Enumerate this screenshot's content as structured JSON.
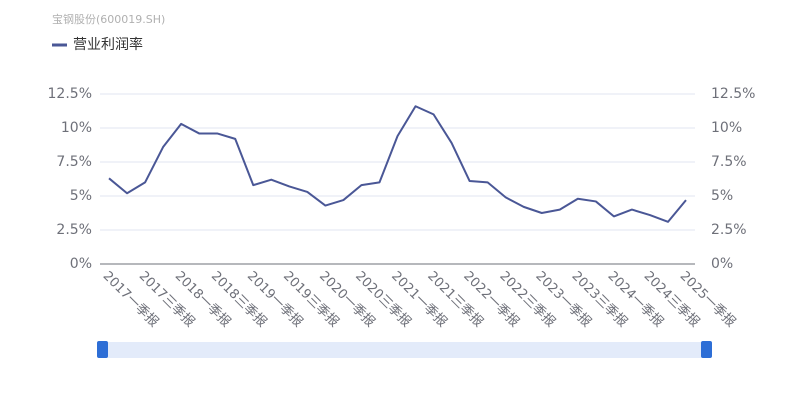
{
  "chart_data": {
    "type": "line",
    "title": "宝钢股份(600019.SH)",
    "categories": [
      "2017一季报",
      null,
      "2017三季报",
      null,
      "2018一季报",
      null,
      "2018三季报",
      null,
      "2019一季报",
      null,
      "2019三季报",
      null,
      "2020一季报",
      null,
      "2020三季报",
      null,
      "2021一季报",
      null,
      "2021三季报",
      null,
      "2022一季报",
      null,
      "2022三季报",
      null,
      "2023一季报",
      null,
      "2023三季报",
      null,
      "2024一季报",
      null,
      "2024三季报",
      null,
      "2025一季报"
    ],
    "series": [
      {
        "name": "营业利润率",
        "color": "#4a5796",
        "values": [
          6.3,
          5.2,
          6.0,
          8.6,
          10.3,
          9.6,
          9.6,
          9.2,
          5.8,
          6.2,
          5.7,
          5.3,
          4.3,
          4.7,
          5.8,
          6.0,
          9.4,
          11.6,
          11.0,
          8.9,
          6.1,
          6.0,
          4.9,
          4.2,
          3.75,
          4.0,
          4.8,
          4.6,
          3.5,
          4.0,
          3.6,
          3.1,
          4.7
        ]
      }
    ],
    "ylim": [
      0,
      12.5
    ],
    "yticks": [
      {
        "value": 0,
        "label": "0%"
      },
      {
        "value": 2.5,
        "label": "2.5%"
      },
      {
        "value": 5,
        "label": "5%"
      },
      {
        "value": 7.5,
        "label": "7.5%"
      },
      {
        "value": 10,
        "label": "10%"
      },
      {
        "value": 12.5,
        "label": "12.5%"
      }
    ],
    "y2lim": [
      0,
      12.5
    ],
    "y2ticks": [
      {
        "value": 0,
        "label": "0%"
      },
      {
        "value": 2.5,
        "label": "2.5%"
      },
      {
        "value": 5,
        "label": "5%"
      },
      {
        "value": 7.5,
        "label": "7.5%"
      },
      {
        "value": 10,
        "label": "10%"
      },
      {
        "value": 12.5,
        "label": "12.5%"
      }
    ],
    "grid": true
  }
}
